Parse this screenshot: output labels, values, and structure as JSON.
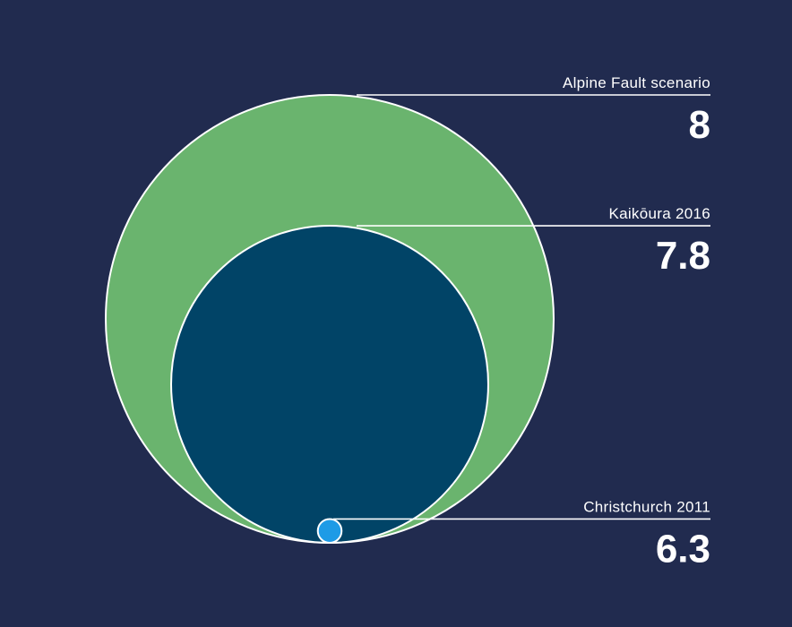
{
  "chart_data": {
    "type": "bubble",
    "title": "",
    "xlabel": "",
    "ylabel": "",
    "encoding": "nested circles, area proportional to earthquake energy, bottom-aligned",
    "series": [
      {
        "name": "Alpine Fault scenario",
        "value": 8,
        "value_label": "8",
        "color": "#6ab46e"
      },
      {
        "name": "Kaikōura 2016",
        "value": 7.8,
        "value_label": "7.8",
        "color": "#014467"
      },
      {
        "name": "Christchurch 2011",
        "value": 6.3,
        "value_label": "6.3",
        "color": "#1e9be6"
      }
    ],
    "background": "#212b4f",
    "outline_color": "#ffffff"
  }
}
